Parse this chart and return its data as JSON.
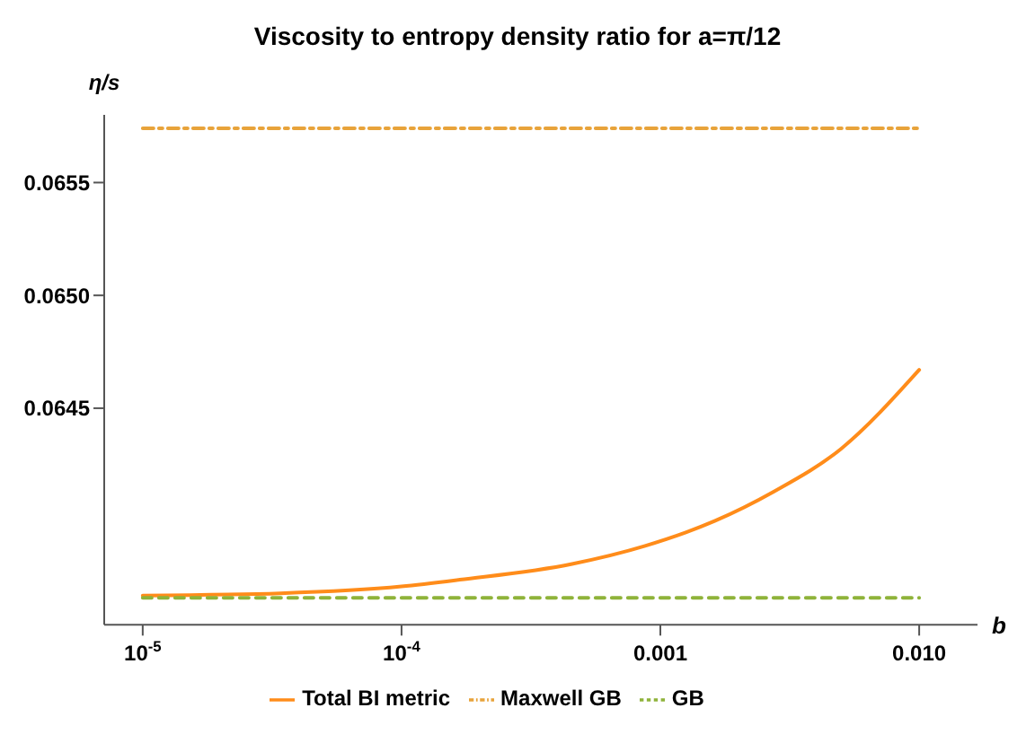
{
  "chart_data": {
    "type": "line",
    "title": "Viscosity to entropy density ratio for a=π/12",
    "xlabel": "b",
    "ylabel": "η/s",
    "log": "x",
    "xlim": [
      7.1e-06,
      0.0168
    ],
    "xticks": [
      {
        "value": 1e-05,
        "label": "10$^{-5}$"
      },
      {
        "value": 0.0001,
        "label": "10$^{-4}$"
      },
      {
        "value": 0.001,
        "label": "0.001"
      },
      {
        "value": 0.01,
        "label": "0.010"
      }
    ],
    "ylim": [
      0.06354,
      0.0658
    ],
    "yticks": [
      0.0645,
      {
        "value": 0.065,
        "label": "0.0650"
      },
      0.0655
    ],
    "legend": "bottom",
    "marker": "none",
    "series": [
      {
        "name": "Total BI metric",
        "color": "#ff8c1a",
        "line_style": "solid",
        "x": [
          1e-05,
          3.4e-05,
          0.0001,
          0.000168,
          0.000456,
          0.000873,
          0.00162,
          0.00274,
          0.00499,
          0.01
        ],
        "values": [
          0.06367,
          0.06368,
          0.06371,
          0.06374,
          0.06381,
          0.06389,
          0.064,
          0.06413,
          0.06432,
          0.06467
        ]
      },
      {
        "name": "Maxwell GB",
        "color": "#e8a33a",
        "line_style": "dashdot",
        "x": [
          1e-05,
          0.01
        ],
        "values": [
          0.06574,
          0.06574
        ]
      },
      {
        "name": "GB",
        "color": "#8fb33a",
        "line_style": "dashed",
        "x": [
          1e-05,
          0.01
        ],
        "values": [
          0.06366,
          0.06366
        ]
      }
    ]
  }
}
